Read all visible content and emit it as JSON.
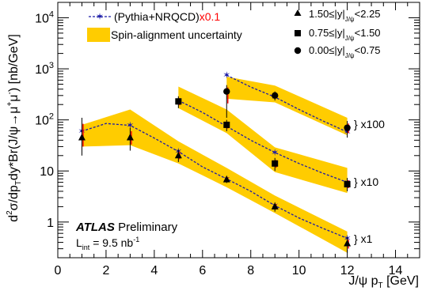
{
  "chart_data": {
    "type": "scatter",
    "title": "",
    "xlabel": "J/ψ p_T [GeV]",
    "xlabel_parts": [
      "J/ψ p",
      "T",
      " [GeV]"
    ],
    "ylabel": "d²σ/dp_T dy*Br(J/ψ→μ⁺μ⁻) [nb/GeV]",
    "ylabel_parts": [
      "d",
      "2",
      "σ/dp",
      "T",
      "dy*Br(J/ψ→μ",
      "+",
      "μ",
      "-",
      ") [nb/GeV]"
    ],
    "xlim": [
      0,
      15
    ],
    "ylim": [
      0.2,
      20000
    ],
    "log_y": true,
    "grid": false,
    "x_ticks": [
      "0",
      "2",
      "4",
      "6",
      "8",
      "10",
      "12",
      "14"
    ],
    "y_ticks": [
      {
        "base": "1",
        "exp": ""
      },
      {
        "base": "10",
        "exp": ""
      },
      {
        "base": "10",
        "exp": "2"
      },
      {
        "base": "10",
        "exp": "3"
      },
      {
        "base": "10",
        "exp": "4"
      }
    ],
    "legend_left": {
      "model_label": "(Pythia+NRQCD)",
      "model_scale": "x0.1",
      "band_label": "Spin-alignment uncertainty"
    },
    "legend_right": [
      {
        "marker": "triangle",
        "label": "1.50≤|y|",
        "sub": "J/ψ",
        "tail": "<2.25"
      },
      {
        "marker": "square",
        "label": "0.75≤|y|",
        "sub": "J/ψ",
        "tail": "<1.50"
      },
      {
        "marker": "circle",
        "label": "0.00≤|y|",
        "sub": "J/ψ",
        "tail": "<0.75"
      }
    ],
    "experiment": "ATLAS",
    "experiment_note": "Preliminary",
    "luminosity": {
      "prefix": "L",
      "sub": "int",
      "text": " = 9.5 nb",
      "sup": "-1"
    },
    "scale_labels": [
      "} x100",
      "} x10",
      "} x1"
    ],
    "colors": {
      "band": "#ffcc00",
      "model": "#1a1aa6",
      "model_scale_text": "#ff0000",
      "markers": "#000000",
      "red_errors": "#ff0000"
    },
    "series": [
      {
        "name": "1.50≤|y|<2.25",
        "marker": "triangle",
        "x": [
          1,
          3,
          5,
          7,
          9,
          12
        ],
        "y": [
          45,
          45,
          20,
          6.8,
          2.0,
          0.38
        ],
        "y_err_low": [
          25,
          20,
          5,
          1.0,
          0.4,
          0.13
        ],
        "y_err_high": [
          65,
          25,
          6,
          1.2,
          0.4,
          0.12
        ],
        "band_low": [
          30,
          32,
          14,
          4.8,
          1.5,
          0.25
        ],
        "band_high": [
          80,
          160,
          38,
          11.5,
          3.3,
          0.65
        ],
        "model_x": [
          1,
          2,
          3,
          4,
          5,
          6,
          7,
          8,
          9,
          10,
          11,
          12
        ],
        "model_y": [
          60,
          85,
          78,
          44,
          24,
          12,
          7,
          4,
          2.1,
          1.2,
          0.75,
          0.48
        ]
      },
      {
        "name": "0.75≤|y|<1.50",
        "marker": "square",
        "x": [
          5,
          7,
          9,
          12
        ],
        "y": [
          230,
          80,
          14,
          5.5
        ],
        "y_err_low": [
          60,
          20,
          4,
          1.5
        ],
        "y_err_high": [
          60,
          20,
          4,
          1.8
        ],
        "band_low": [
          170,
          55,
          9.5,
          3.7
        ],
        "band_high": [
          450,
          160,
          29,
          11.5
        ],
        "model_x": [
          5,
          6,
          7,
          8,
          9,
          10,
          11,
          12
        ],
        "model_y": [
          240,
          140,
          75,
          40,
          23,
          14,
          9,
          6
        ]
      },
      {
        "name": "0.00≤|y|<0.75",
        "marker": "circle",
        "x": [
          7,
          9,
          12
        ],
        "y": [
          360,
          300,
          70
        ],
        "y_err_low": [
          250,
          60,
          25
        ],
        "y_err_high": [
          120,
          60,
          25
        ],
        "band_low": [
          260,
          220,
          50
        ],
        "band_high": [
          700,
          470,
          110
        ],
        "model_x": [
          7,
          8,
          9,
          10,
          11,
          12
        ],
        "model_y": [
          750,
          440,
          280,
          160,
          95,
          58
        ]
      }
    ]
  }
}
